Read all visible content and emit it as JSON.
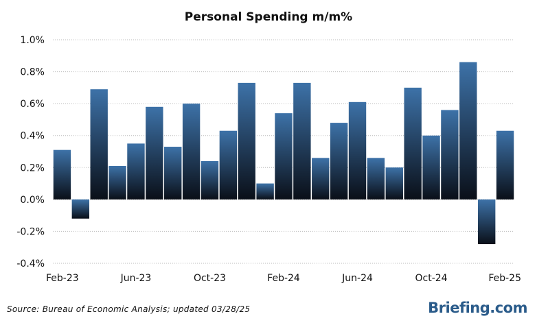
{
  "chart_data": {
    "type": "bar",
    "title": "Personal Spending m/m%",
    "xlabel": "",
    "ylabel": "",
    "ylim": [
      -0.4,
      1.0
    ],
    "y_ticks": [
      "1.0%",
      "0.8%",
      "0.6%",
      "0.4%",
      "0.2%",
      "0.0%",
      "-0.2%",
      "-0.4%"
    ],
    "y_tick_values": [
      1.0,
      0.8,
      0.6,
      0.4,
      0.2,
      0.0,
      -0.2,
      -0.4
    ],
    "x_tick_labels": [
      "Feb-23",
      "Jun-23",
      "Oct-23",
      "Feb-24",
      "Jun-24",
      "Oct-24",
      "Feb-25"
    ],
    "x_tick_indices": [
      0,
      4,
      8,
      12,
      16,
      20,
      24
    ],
    "grid": true,
    "legend": "none",
    "categories": [
      "Feb-23",
      "Mar-23",
      "Apr-23",
      "May-23",
      "Jun-23",
      "Jul-23",
      "Aug-23",
      "Sep-23",
      "Oct-23",
      "Nov-23",
      "Dec-23",
      "Jan-24",
      "Feb-24",
      "Mar-24",
      "Apr-24",
      "May-24",
      "Jun-24",
      "Jul-24",
      "Aug-24",
      "Sep-24",
      "Oct-24",
      "Nov-24",
      "Dec-24",
      "Jan-25",
      "Feb-25"
    ],
    "values": [
      0.31,
      -0.12,
      0.69,
      0.21,
      0.35,
      0.58,
      0.33,
      0.6,
      0.24,
      0.43,
      0.73,
      0.1,
      0.54,
      0.73,
      0.26,
      0.48,
      0.61,
      0.26,
      0.2,
      0.7,
      0.4,
      0.56,
      0.86,
      -0.28,
      0.43
    ],
    "colors": {
      "bar_top": "#3d72a8",
      "bar_bottom": "#0a0f18",
      "negative_tick": "#cc0000",
      "grid": "#bbbbbb"
    }
  },
  "footer": {
    "source": "Source: Bureau of Economic Analysis; updated 03/28/25",
    "brand": "Briefing.com"
  }
}
